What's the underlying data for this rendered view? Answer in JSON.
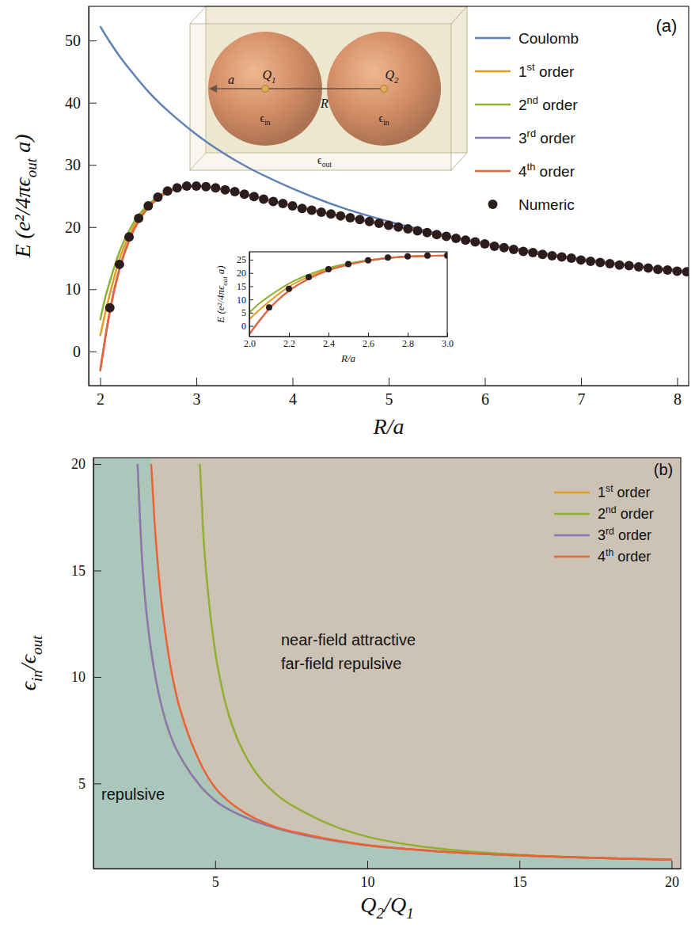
{
  "chart_data": [
    {
      "type": "line",
      "title": "(a)",
      "x_label": "R/a",
      "y_label": "E (e²/4πϵout a)",
      "xlim": [
        1.88,
        8.12
      ],
      "ylim": [
        -5.5,
        55.5
      ],
      "xticks": [
        2,
        3,
        4,
        5,
        6,
        7,
        8
      ],
      "yticks": [
        0,
        10,
        20,
        30,
        40,
        50
      ],
      "legend": "upper right",
      "x": [
        2,
        2.05,
        2.1,
        2.2,
        2.3,
        2.4,
        2.5,
        2.6,
        2.8,
        3,
        3.2,
        3.5,
        4,
        4.5,
        5,
        5.5,
        6,
        6.5,
        7,
        7.5,
        8,
        8.12
      ],
      "series": [
        {
          "name": "Coulomb",
          "color": "#5e81b5",
          "values": [
            52.3,
            51.0,
            49.8,
            47.5,
            45.5,
            43.6,
            41.8,
            40.2,
            37.4,
            34.9,
            32.7,
            29.9,
            26.2,
            23.2,
            20.9,
            19.0,
            17.4,
            16.1,
            14.9,
            13.9,
            13.1,
            12.9
          ]
        },
        {
          "name": "1st order",
          "color": "#e19c24",
          "values": [
            2.5,
            6.0,
            9.2,
            14.8,
            18.6,
            21.4,
            23.3,
            24.7,
            26.2,
            26.6,
            26.3,
            25.3,
            23.4,
            21.8,
            20.3,
            18.8,
            17.3,
            15.9,
            14.7,
            13.8,
            12.9,
            12.7
          ]
        },
        {
          "name": "2nd order",
          "color": "#8fb032",
          "values": [
            5.0,
            8.5,
            11.2,
            16.0,
            19.4,
            21.9,
            23.6,
            24.9,
            26.3,
            26.6,
            26.3,
            25.3,
            23.4,
            21.8,
            20.3,
            18.8,
            17.3,
            15.9,
            14.7,
            13.8,
            12.9,
            12.7
          ]
        },
        {
          "name": "3rd order",
          "color": "#8778b6",
          "values": [
            -3.0,
            2.0,
            6.5,
            13.3,
            17.8,
            21.0,
            23.1,
            24.6,
            26.2,
            26.6,
            26.3,
            25.3,
            23.4,
            21.8,
            20.3,
            18.8,
            17.3,
            15.9,
            14.7,
            13.8,
            12.9,
            12.7
          ]
        },
        {
          "name": "4th order",
          "color": "#eb6235",
          "values": [
            -3.2,
            1.8,
            6.4,
            13.2,
            17.8,
            21.0,
            23.1,
            24.6,
            26.2,
            26.6,
            26.3,
            25.3,
            23.4,
            21.8,
            20.3,
            18.8,
            17.3,
            15.9,
            14.7,
            13.8,
            12.9,
            12.7
          ]
        },
        {
          "name": "Numeric",
          "type": "scatter",
          "marker": "circle",
          "color": "#2b1d1d",
          "x": [
            2.1,
            2.2,
            2.3,
            2.4,
            2.5,
            2.6,
            2.7,
            2.8,
            2.9,
            3.0,
            3.1,
            3.2,
            3.3,
            3.4,
            3.5,
            3.6,
            3.7,
            3.8,
            3.9,
            4.0,
            4.1,
            4.2,
            4.3,
            4.4,
            4.5,
            4.6,
            4.7,
            4.8,
            4.9,
            5.0,
            5.1,
            5.2,
            5.3,
            5.4,
            5.5,
            5.6,
            5.7,
            5.8,
            5.9,
            6.0,
            6.1,
            6.2,
            6.3,
            6.4,
            6.5,
            6.6,
            6.7,
            6.8,
            6.9,
            7.0,
            7.1,
            7.2,
            7.3,
            7.4,
            7.5,
            7.6,
            7.7,
            7.8,
            7.9,
            8.0,
            8.1
          ],
          "values": [
            7.0,
            14.0,
            18.4,
            21.4,
            23.4,
            24.8,
            25.8,
            26.3,
            26.6,
            26.6,
            26.5,
            26.3,
            26.0,
            25.7,
            25.3,
            24.9,
            24.5,
            24.1,
            23.8,
            23.4,
            23.0,
            22.7,
            22.4,
            22.1,
            21.8,
            21.5,
            21.2,
            20.9,
            20.6,
            20.3,
            20.0,
            19.7,
            19.4,
            19.1,
            18.8,
            18.5,
            18.2,
            17.9,
            17.6,
            17.3,
            16.9,
            16.7,
            16.4,
            16.1,
            15.9,
            15.6,
            15.4,
            15.2,
            15.0,
            14.7,
            14.5,
            14.3,
            14.1,
            13.9,
            13.8,
            13.6,
            13.4,
            13.2,
            13.1,
            12.9,
            12.8
          ]
        }
      ],
      "annotations": [
        "Q1",
        "Q2",
        "a",
        "R",
        "ϵin",
        "ϵin",
        "ϵout"
      ]
    },
    {
      "type": "line",
      "x_label": "R/a",
      "y_label": "E (e²/4πϵout a)",
      "xlim": [
        2.0,
        3.0
      ],
      "ylim": [
        -4,
        28
      ],
      "xticks": [
        {
          "value": 2,
          "label": "2.0"
        },
        2.2,
        2.4,
        2.6,
        2.8,
        {
          "value": 3,
          "label": "3.0"
        }
      ],
      "yticks": [
        0,
        5,
        10,
        15,
        20,
        25
      ],
      "x": [
        2,
        2.05,
        2.1,
        2.2,
        2.3,
        2.4,
        2.5,
        2.6,
        2.8,
        3
      ],
      "series": [
        {
          "color": "#e19c24",
          "values": [
            2.5,
            6.0,
            9.2,
            14.8,
            18.6,
            21.4,
            23.3,
            24.7,
            26.2,
            26.6
          ]
        },
        {
          "color": "#8fb032",
          "values": [
            5.0,
            8.5,
            11.2,
            16.0,
            19.4,
            21.9,
            23.6,
            24.9,
            26.3,
            26.6
          ]
        },
        {
          "color": "#8778b6",
          "values": [
            -3.0,
            2.0,
            6.5,
            13.3,
            17.8,
            21.0,
            23.1,
            24.6,
            26.2,
            26.6
          ]
        },
        {
          "color": "#eb6235",
          "values": [
            -3.2,
            1.8,
            6.4,
            13.2,
            17.8,
            21.0,
            23.1,
            24.6,
            26.2,
            26.6
          ]
        },
        {
          "type": "scatter",
          "marker": "circle",
          "color": "#2b1d1d",
          "x": [
            2.1,
            2.2,
            2.3,
            2.4,
            2.5,
            2.6,
            2.7,
            2.8,
            2.9,
            3.0
          ],
          "values": [
            7.0,
            14.0,
            18.4,
            21.4,
            23.4,
            24.8,
            25.8,
            26.3,
            26.6,
            26.6
          ]
        }
      ]
    },
    {
      "type": "line",
      "title": "(b)",
      "x_label": "Q2/Q1",
      "y_label": "ϵin/ϵout",
      "xlim": [
        1,
        20.3
      ],
      "ylim": [
        1,
        20.3
      ],
      "xticks": [
        5,
        10,
        15,
        20
      ],
      "yticks": [
        5,
        10,
        15,
        20
      ],
      "legend": "upper right",
      "series": [
        {
          "name": "1st order",
          "color": "#e19c24",
          "x": [
            2.45,
            2.6,
            2.8,
            3,
            3.3,
            3.6,
            4,
            4.5,
            5,
            6,
            7,
            8,
            10,
            12,
            15,
            20
          ],
          "values": [
            20,
            15.5,
            12.3,
            10.3,
            8.3,
            7.0,
            5.9,
            4.9,
            4.2,
            3.4,
            2.9,
            2.55,
            2.1,
            1.85,
            1.62,
            1.42
          ]
        },
        {
          "name": "2nd order",
          "color": "#8fb032",
          "x": [
            4.5,
            4.6,
            4.8,
            5,
            5.3,
            5.7,
            6.2,
            7,
            8,
            9,
            10,
            12,
            15,
            20
          ],
          "values": [
            20,
            17,
            13.5,
            11.2,
            9.0,
            7.2,
            5.8,
            4.5,
            3.6,
            2.95,
            2.5,
            2.0,
            1.65,
            1.43
          ]
        },
        {
          "name": "3rd order",
          "color": "#8778b6",
          "x": [
            2.45,
            2.6,
            2.8,
            3,
            3.3,
            3.6,
            4,
            4.5,
            5,
            6,
            7,
            8,
            10,
            12,
            15,
            20
          ],
          "values": [
            20,
            15.5,
            12.3,
            10.3,
            8.3,
            7.0,
            5.9,
            4.9,
            4.2,
            3.4,
            2.9,
            2.55,
            2.1,
            1.85,
            1.62,
            1.42
          ]
        },
        {
          "name": "4th order",
          "color": "#eb6235",
          "x": [
            2.9,
            3,
            3.2,
            3.4,
            3.7,
            4,
            4.5,
            5,
            5.5,
            6,
            7,
            8,
            10,
            12,
            15,
            20
          ],
          "values": [
            20,
            17.5,
            14.0,
            11.7,
            9.3,
            7.8,
            6.0,
            4.8,
            4.1,
            3.6,
            2.95,
            2.6,
            2.1,
            1.85,
            1.62,
            1.42
          ]
        }
      ],
      "annotations": [
        "repulsive",
        "near-field attractive",
        "far-field repulsive"
      ]
    }
  ]
}
